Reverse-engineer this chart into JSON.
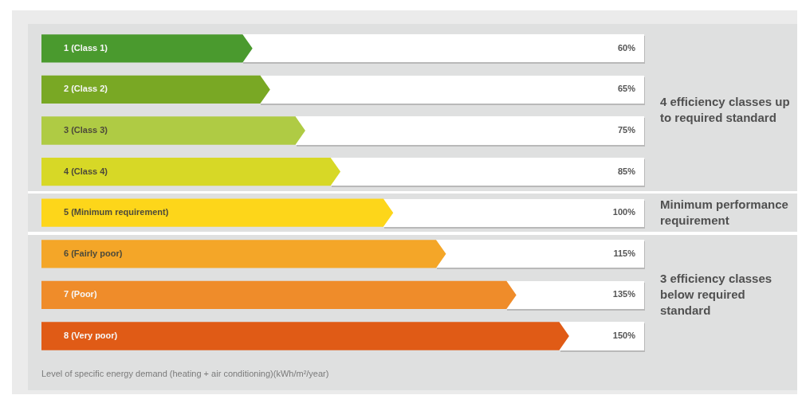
{
  "chart_data": {
    "type": "bar",
    "orientation": "horizontal",
    "categories": [
      "1 (Class 1)",
      "2 (Class 2)",
      "3 (Class 3)",
      "4 (Class 4)",
      "5 (Minimum requirement)",
      "6 (Fairly poor)",
      "7 (Poor)",
      "8 (Very poor)"
    ],
    "values": [
      60,
      65,
      75,
      85,
      100,
      115,
      135,
      150
    ],
    "colors": [
      "#4a9a2e",
      "#79a824",
      "#afcb44",
      "#d7d826",
      "#fdd61a",
      "#f4a628",
      "#ef8c2a",
      "#e05b16"
    ],
    "value_labels": [
      "60%",
      "65%",
      "75%",
      "85%",
      "100%",
      "115%",
      "135%",
      "150%"
    ],
    "xlabel": "Level of specific energy demand (heating + air conditioning)(kWh/m²/year)",
    "bands": [
      {
        "axis": "y",
        "from": "1 (Class 1)",
        "to": "4 (Class 4)",
        "label": "4 efficiency classes up to required standard",
        "color": "#dfe0e0"
      },
      {
        "axis": "y",
        "from": "5 (Minimum requirement)",
        "to": "5 (Minimum requirement)",
        "label": "Minimum performance requirement",
        "color": "#dfe0e0"
      },
      {
        "axis": "y",
        "from": "6 (Fairly poor)",
        "to": "8 (Very poor)",
        "label": "3 efficiency classes below required standard",
        "color": "#dfe0e0"
      }
    ],
    "tick_labels": "y"
  }
}
